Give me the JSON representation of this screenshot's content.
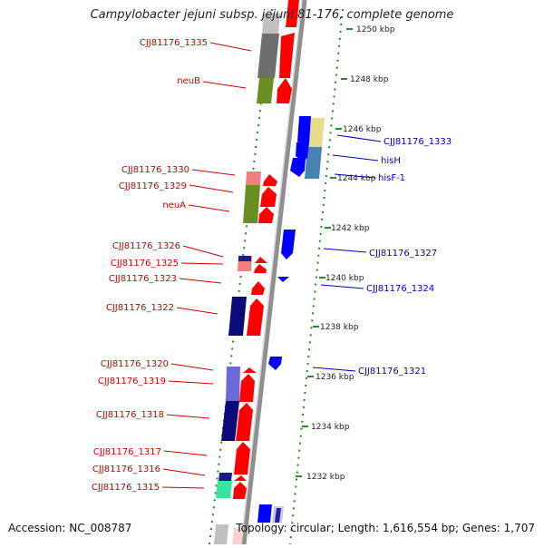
{
  "title": "Campylobacter jejuni subsp. jejuni 81-176, complete genome",
  "accession": "Accession: NC_008787",
  "summary": "Topology: circular; Length: 1,616,554 bp; Genes: 1,707",
  "colors": {
    "reverse_label": "#cc0000",
    "forward_label": "#0000bb",
    "backbone": "#8f8f8f",
    "tick": "#2a8a2a",
    "dot": "#1e8a1e"
  },
  "ticks": [
    {
      "label": "1250 kbp",
      "kbp": 1250
    },
    {
      "label": "1248 kbp",
      "kbp": 1248
    },
    {
      "label": "1246 kbp",
      "kbp": 1246
    },
    {
      "label": "1244 kbp",
      "kbp": 1244
    },
    {
      "label": "1242 kbp",
      "kbp": 1242
    },
    {
      "label": "1240 kbp",
      "kbp": 1240
    },
    {
      "label": "1238 kbp",
      "kbp": 1238
    },
    {
      "label": "1236 kbp",
      "kbp": 1236
    },
    {
      "label": "1234 kbp",
      "kbp": 1234
    },
    {
      "label": "1232 kbp",
      "kbp": 1232
    }
  ],
  "left_labels": [
    "CJJ81176_1335",
    "neuB",
    "CJJ81176_1330",
    "CJJ81176_1329",
    "neuA",
    "CJJ81176_1326",
    "CJJ81176_1325",
    "CJJ81176_1323",
    "CJJ81176_1322",
    "CJJ81176_1320",
    "CJJ81176_1319",
    "CJJ81176_1318",
    "CJJ81176_1317",
    "CJJ81176_1316",
    "CJJ81176_1315"
  ],
  "right_labels": [
    "CJJ81176_1333",
    "hisH",
    "hisF-1",
    "CJJ81176_1327",
    "CJJ81176_1324",
    "CJJ81176_1321"
  ]
}
